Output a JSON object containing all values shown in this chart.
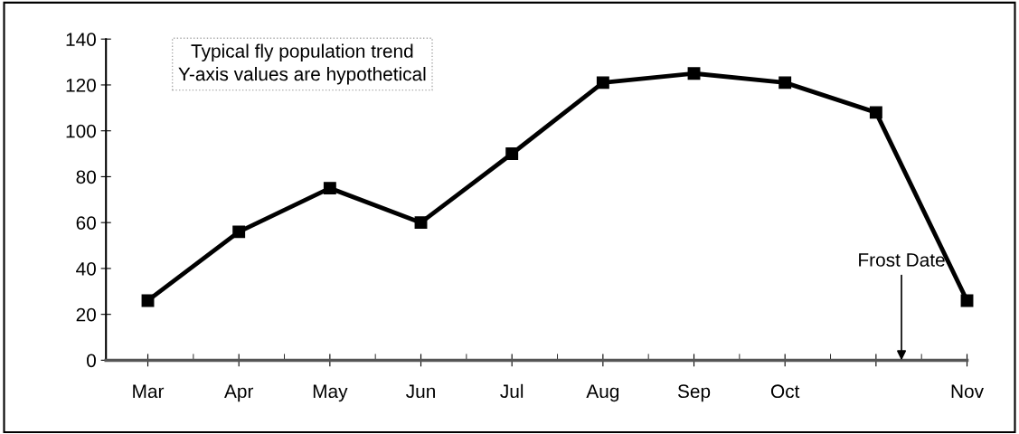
{
  "chart_data": {
    "type": "line",
    "categories": [
      "Mar",
      "Apr",
      "May",
      "Jun",
      "Jul",
      "Aug",
      "Sep",
      "Oct",
      null,
      "Nov"
    ],
    "series": [
      {
        "color": "#000000",
        "values": [
          26,
          56,
          75,
          60,
          90,
          121,
          125,
          121,
          108,
          26
        ]
      }
    ],
    "ylim": [
      0,
      140
    ],
    "yticks": [
      0,
      20,
      40,
      60,
      80,
      100,
      120,
      140
    ],
    "marker": "square",
    "line_style": "solid",
    "grid": false,
    "legend": false,
    "annotations": [
      "Typical fly population trend\nY-axis values are hypothetical",
      "Frost Date"
    ]
  }
}
